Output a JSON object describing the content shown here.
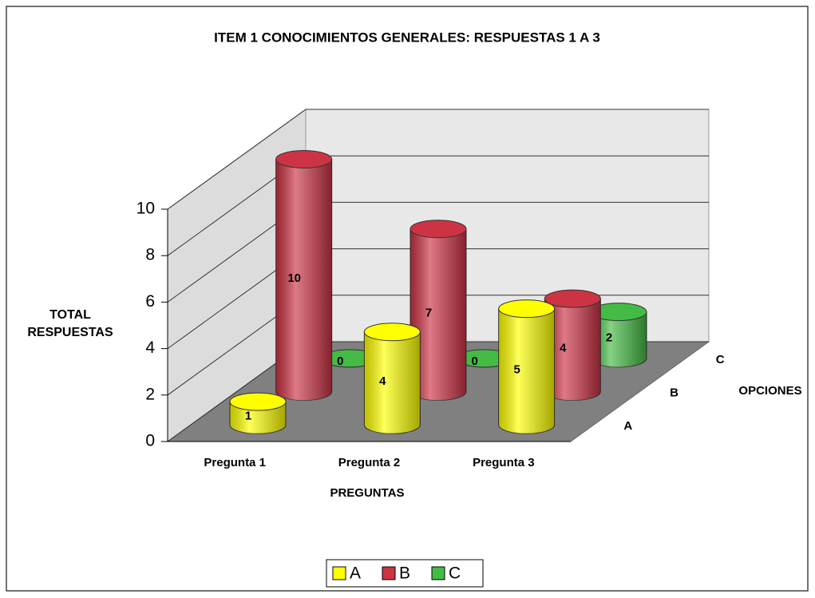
{
  "chart_data": {
    "type": "bar3d",
    "title": "ITEM 1 CONOCIMIENTOS GENERALES: RESPUESTAS 1 A 3",
    "y_label": "TOTAL RESPUESTAS",
    "x_label": "PREGUNTAS",
    "z_label": "OPCIONES",
    "categories": [
      "Pregunta 1",
      "Pregunta 2",
      "Pregunta 3"
    ],
    "series": [
      {
        "name": "A",
        "color": "#ffff00",
        "values": [
          1,
          4,
          5
        ]
      },
      {
        "name": "B",
        "color": "#cc3344",
        "values": [
          10,
          7,
          4
        ]
      },
      {
        "name": "C",
        "color": "#44bb44",
        "values": [
          0,
          0,
          2
        ]
      }
    ],
    "ylim": [
      0,
      10
    ],
    "yticks": [
      0,
      2,
      4,
      6,
      8,
      10
    ],
    "grid": true,
    "legend": "bottom"
  }
}
